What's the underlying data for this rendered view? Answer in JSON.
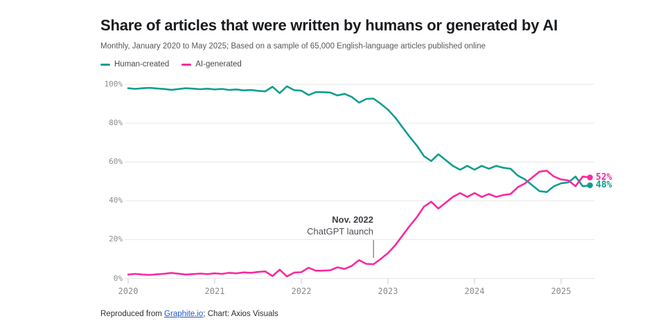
{
  "header": {
    "title": "Share of articles that were written by humans or generated by AI",
    "subtitle": "Monthly, January 2020 to May 2025; Based on a sample of 65,000 English-language articles published online"
  },
  "footer": {
    "prefix": "Reproduced from ",
    "link_text": "Graphite.io",
    "suffix": "; Chart: Axios Visuals"
  },
  "annotation_text": {
    "line1": "Nov. 2022",
    "line2": "ChatGPT launch"
  },
  "colors": {
    "human": "#0d9e8f",
    "ai": "#fa28a0",
    "gridline": "#e5e6e7",
    "axis_text": "#8a8e91",
    "link_blue": "#2159c4"
  },
  "chart_data": {
    "type": "line",
    "title": "Share of articles that were written by humans or generated by AI",
    "x_unit": "month",
    "x_range": [
      "2020-01",
      "2025-05"
    ],
    "ylim": [
      0,
      100
    ],
    "grid": "horizontal",
    "legend_position": "top-left",
    "x_axis": {
      "ticks": [
        {
          "label": "2020",
          "month": 0
        },
        {
          "label": "2021",
          "month": 12
        },
        {
          "label": "2022",
          "month": 24
        },
        {
          "label": "2023",
          "month": 36
        },
        {
          "label": "2024",
          "month": 48
        },
        {
          "label": "2025",
          "month": 60
        }
      ]
    },
    "y_axis": {
      "ticks": [
        {
          "label": "0%",
          "value": 0
        },
        {
          "label": "20%",
          "value": 20
        },
        {
          "label": "40%",
          "value": 40
        },
        {
          "label": "60%",
          "value": 60
        },
        {
          "label": "80%",
          "value": 80
        },
        {
          "label": "100%",
          "value": 100
        }
      ]
    },
    "annotation": {
      "label_bold": "Nov. 2022",
      "label": "ChatGPT launch",
      "month_index": 34
    },
    "series": [
      {
        "id": "human",
        "name": "Human-created",
        "color": "#0d9e8f",
        "end_label": "48%",
        "end_value": 48,
        "values": [
          98.0,
          97.7,
          98.0,
          98.2,
          97.9,
          97.6,
          97.2,
          97.6,
          98.0,
          97.8,
          97.5,
          97.8,
          97.4,
          97.7,
          97.1,
          97.4,
          96.9,
          97.1,
          96.7,
          96.4,
          98.8,
          95.5,
          99.0,
          97.0,
          96.8,
          94.5,
          96.0,
          96.0,
          95.8,
          94.3,
          95.1,
          93.5,
          90.6,
          92.5,
          92.7,
          90.0,
          87.0,
          83.0,
          78.0,
          73.0,
          68.5,
          63.0,
          60.5,
          64.0,
          61.0,
          58.0,
          56.0,
          58.0,
          56.0,
          58.0,
          56.5,
          58.0,
          57.0,
          56.5,
          53.0,
          51.0,
          48.0,
          45.0,
          44.5,
          47.5,
          49.0,
          49.5,
          52.5,
          47.5,
          48.0
        ]
      },
      {
        "id": "ai",
        "name": "AI-generated",
        "color": "#fa28a0",
        "end_label": "52%",
        "end_value": 52,
        "values": [
          2.0,
          2.3,
          2.0,
          1.8,
          2.1,
          2.4,
          2.8,
          2.4,
          2.0,
          2.2,
          2.5,
          2.2,
          2.6,
          2.3,
          2.9,
          2.6,
          3.1,
          2.9,
          3.3,
          3.6,
          1.2,
          4.5,
          1.0,
          3.0,
          3.2,
          5.5,
          4.0,
          4.0,
          4.2,
          5.7,
          4.9,
          6.5,
          9.4,
          7.5,
          7.3,
          10.0,
          13.0,
          17.0,
          22.0,
          27.0,
          31.5,
          37.0,
          39.5,
          36.0,
          39.0,
          42.0,
          44.0,
          42.0,
          44.0,
          42.0,
          43.5,
          42.0,
          43.0,
          43.5,
          47.0,
          49.0,
          52.0,
          55.0,
          55.5,
          52.5,
          51.0,
          50.5,
          47.5,
          52.5,
          52.0
        ]
      }
    ]
  }
}
